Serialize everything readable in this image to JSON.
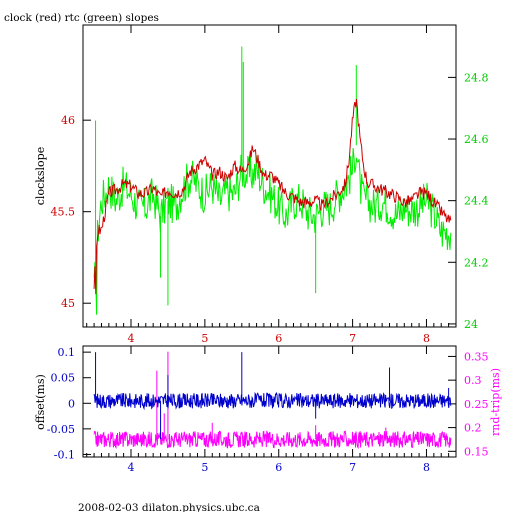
{
  "title": "clock (red) rtc (green) slopes",
  "footer": "2008-02-03  dilaton.physics.ubc.ca",
  "colors": {
    "red": "#cc0000",
    "green": "#00ee00",
    "blue": "#0000cc",
    "magenta": "#ff00ff",
    "black": "#000000"
  },
  "chart_data": [
    {
      "type": "line",
      "ylabel": "clockslope",
      "y2label": "",
      "xlim": [
        3.35,
        8.4
      ],
      "ylim": [
        44.87,
        46.52
      ],
      "y2lim": [
        23.99,
        24.97
      ],
      "xticks": [
        "4",
        "5",
        "6",
        "7",
        "8"
      ],
      "yticks": [
        "45",
        "45.5",
        "46"
      ],
      "y2ticks": [
        "24",
        "24.2",
        "24.4",
        "24.6",
        "24.8"
      ],
      "series": [
        {
          "axis": "left",
          "color": "red",
          "x": [
            3.5,
            3.55,
            3.6,
            3.65,
            3.7,
            3.8,
            3.9,
            4.0,
            4.1,
            4.2,
            4.3,
            4.4,
            4.5,
            4.6,
            4.7,
            4.8,
            4.9,
            5.0,
            5.1,
            5.2,
            5.3,
            5.4,
            5.5,
            5.6,
            5.65,
            5.7,
            5.8,
            5.9,
            6.0,
            6.1,
            6.2,
            6.3,
            6.4,
            6.5,
            6.6,
            6.7,
            6.8,
            6.9,
            6.95,
            7.0,
            7.05,
            7.1,
            7.15,
            7.2,
            7.3,
            7.4,
            7.5,
            7.6,
            7.7,
            7.8,
            7.9,
            8.0,
            8.1,
            8.2,
            8.3
          ],
          "values": [
            45.1,
            45.4,
            45.4,
            45.5,
            45.6,
            45.62,
            45.65,
            45.64,
            45.6,
            45.6,
            45.63,
            45.58,
            45.62,
            45.6,
            45.62,
            45.72,
            45.75,
            45.78,
            45.7,
            45.72,
            45.68,
            45.75,
            45.72,
            45.78,
            45.85,
            45.8,
            45.7,
            45.7,
            45.65,
            45.6,
            45.58,
            45.55,
            45.55,
            45.56,
            45.53,
            45.57,
            45.6,
            45.65,
            45.78,
            46.0,
            46.12,
            45.9,
            45.75,
            45.66,
            45.64,
            45.62,
            45.6,
            45.58,
            45.55,
            45.56,
            45.6,
            45.6,
            45.55,
            45.5,
            45.45
          ],
          "min": 45.05
        },
        {
          "axis": "right",
          "color": "green",
          "x": [
            3.5,
            3.55,
            3.6,
            3.65,
            3.7,
            3.8,
            3.9,
            4.0,
            4.1,
            4.2,
            4.3,
            4.4,
            4.5,
            4.6,
            4.7,
            4.8,
            4.9,
            5.0,
            5.1,
            5.2,
            5.3,
            5.4,
            5.5,
            5.6,
            5.7,
            5.8,
            5.9,
            6.0,
            6.1,
            6.2,
            6.3,
            6.4,
            6.5,
            6.6,
            6.7,
            6.8,
            6.9,
            7.0,
            7.05,
            7.1,
            7.15,
            7.2,
            7.3,
            7.4,
            7.5,
            7.6,
            7.7,
            7.8,
            7.9,
            8.0,
            8.1,
            8.2,
            8.3
          ],
          "values": [
            24.1,
            24.3,
            24.4,
            24.42,
            24.45,
            24.4,
            24.45,
            24.42,
            24.38,
            24.38,
            24.42,
            24.35,
            24.4,
            24.38,
            24.44,
            24.48,
            24.45,
            24.42,
            24.45,
            24.4,
            24.43,
            24.42,
            24.5,
            24.48,
            24.5,
            24.45,
            24.42,
            24.38,
            24.35,
            24.4,
            24.4,
            24.36,
            24.35,
            24.38,
            24.38,
            24.42,
            24.45,
            24.5,
            24.58,
            24.45,
            24.4,
            24.4,
            24.38,
            24.4,
            24.38,
            24.35,
            24.38,
            24.37,
            24.38,
            24.4,
            24.36,
            24.3,
            24.3
          ],
          "spikes": [
            [
              3.52,
              24.66
            ],
            [
              4.4,
              24.15
            ],
            [
              4.5,
              24.06
            ],
            [
              5.5,
              24.9
            ],
            [
              5.52,
              24.85
            ],
            [
              6.5,
              24.1
            ],
            [
              7.05,
              24.84
            ]
          ],
          "min": 24.03
        }
      ]
    },
    {
      "type": "line",
      "ylabel": "offset(ms)",
      "y2label": "rnd-trip(ms)",
      "xlim": [
        3.35,
        8.4
      ],
      "ylim": [
        -0.105,
        0.112
      ],
      "y2lim": [
        0.138,
        0.372
      ],
      "xticks": [
        "4",
        "5",
        "6",
        "7",
        "8"
      ],
      "yticks": [
        "0.1",
        "0.05",
        "0",
        "-0.05",
        "-0.1"
      ],
      "y2ticks": [
        "0.35",
        "0.3",
        "0.25",
        "0.2",
        "0.15"
      ],
      "series": [
        {
          "axis": "left",
          "color": "blue",
          "baseline": 0.005,
          "spikes": [
            [
              3.52,
              0.1
            ],
            [
              4.4,
              -0.07
            ],
            [
              4.5,
              0.055
            ],
            [
              5.5,
              0.1
            ],
            [
              6.5,
              -0.03
            ],
            [
              7.5,
              0.07
            ],
            [
              8.3,
              0.03
            ]
          ]
        },
        {
          "axis": "right",
          "color": "magenta",
          "baseline": 0.175,
          "spikes": [
            [
              4.35,
              0.32
            ],
            [
              4.5,
              0.36
            ],
            [
              4.45,
              0.23
            ],
            [
              5.1,
              0.21
            ],
            [
              6.5,
              0.205
            ],
            [
              7.45,
              0.2
            ]
          ]
        }
      ]
    }
  ]
}
